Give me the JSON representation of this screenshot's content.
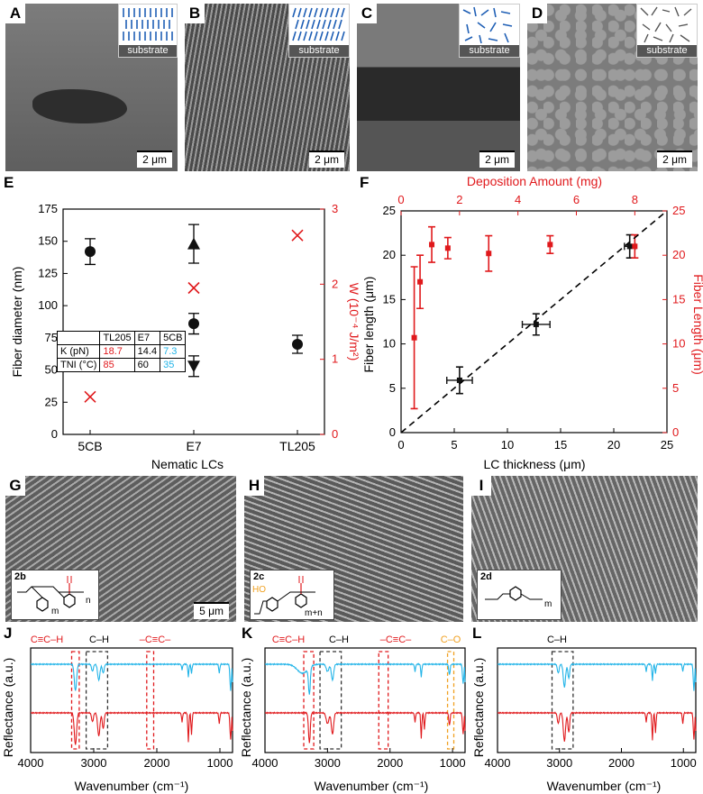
{
  "sem_top": [
    {
      "letter": "A",
      "inset_label": "substrate",
      "scale": "2 μm"
    },
    {
      "letter": "B",
      "inset_label": "substrate",
      "scale": "2 μm"
    },
    {
      "letter": "C",
      "inset_label": "substrate",
      "scale": "2 μm"
    },
    {
      "letter": "D",
      "inset_label": "substrate",
      "scale": "2 μm"
    }
  ],
  "sem_bottom": [
    {
      "letter": "G",
      "molecule": "2b",
      "scale": "5 μm"
    },
    {
      "letter": "H",
      "molecule": "2c",
      "scale": ""
    },
    {
      "letter": "I",
      "molecule": "2d",
      "scale": ""
    }
  ],
  "molecule_labels": {
    "2b_sub": "n",
    "2b_m": "m",
    "2c_sub": "m+n",
    "2c_ho": "HO",
    "2d_sub": "m"
  },
  "panel_letters": {
    "E": "E",
    "F": "F",
    "J": "J",
    "K": "K",
    "L": "L"
  },
  "table_E": {
    "header": [
      "",
      "TL205",
      "E7",
      "5CB"
    ],
    "rows": [
      [
        "K (pN)",
        "18.7",
        "14.4",
        "7.3"
      ],
      [
        "TNI (°C)",
        "85",
        "60",
        "35"
      ]
    ]
  },
  "ir_bands": {
    "J": [
      "C≡C–H",
      "C–H",
      "–C≡C–"
    ],
    "K": [
      "C≡C–H",
      "C–H",
      "–C≡C–",
      "C–O"
    ],
    "L": [
      "C–H"
    ]
  },
  "colors": {
    "red": "#e0191c",
    "cyan": "#22b4e8",
    "orange": "#f0a020",
    "blue": "#1f5fb5"
  },
  "chart_data": [
    {
      "panel": "E",
      "type": "scatter",
      "xlabel": "Nematic LCs",
      "ylabel": "Fiber diameter (nm)",
      "ylabel_right": "W (10⁻⁴ J/m²)",
      "categories": [
        "5CB",
        "E7",
        "TL205"
      ],
      "ylim": [
        0,
        175
      ],
      "yticks": [
        0,
        25,
        50,
        75,
        100,
        125,
        150,
        175
      ],
      "ylim_right": [
        0,
        3
      ],
      "yticks_right": [
        0,
        1,
        2,
        3
      ],
      "series": [
        {
          "marker": "circle",
          "points": [
            {
              "x": "5CB",
              "y": 142,
              "err": 10
            },
            {
              "x": "E7",
              "y": 86,
              "err": 8
            },
            {
              "x": "TL205",
              "y": 70,
              "err": 7
            }
          ]
        },
        {
          "marker": "triangle-up",
          "points": [
            {
              "x": "E7",
              "y": 148,
              "err": 15
            }
          ]
        },
        {
          "marker": "triangle-down",
          "points": [
            {
              "x": "E7",
              "y": 53,
              "err": 8
            }
          ]
        },
        {
          "marker": "cross",
          "axis": "right",
          "points": [
            {
              "x": "5CB",
              "y": 0.5
            },
            {
              "x": "E7",
              "y": 1.95
            },
            {
              "x": "TL205",
              "y": 2.65
            }
          ]
        }
      ]
    },
    {
      "panel": "F",
      "type": "scatter",
      "xlabel": "LC thickness (μm)",
      "ylabel": "Fiber length (μm)",
      "xlabel_top": "Deposition Amount (mg)",
      "ylabel_right": "Fiber Length (μm)",
      "xlim": [
        0,
        25
      ],
      "xticks": [
        0,
        5,
        10,
        15,
        20,
        25
      ],
      "ylim": [
        0,
        25
      ],
      "yticks": [
        0,
        5,
        10,
        15,
        20,
        25
      ],
      "xlim_top": [
        0,
        9.1
      ],
      "xticks_top": [
        0,
        2,
        4,
        6,
        8
      ],
      "yticks_right": [
        0,
        5,
        10,
        15,
        20,
        25
      ],
      "series": [
        {
          "color": "black",
          "points": [
            {
              "x": 5.5,
              "y": 5.9,
              "xerr": 1.2,
              "yerr": 1.5
            },
            {
              "x": 12.7,
              "y": 12.2,
              "xerr": 1.3,
              "yerr": 1.2
            },
            {
              "x": 21.5,
              "y": 21.0,
              "xerr": 0.5,
              "yerr": 1.3
            }
          ]
        },
        {
          "color": "red",
          "axis": "top-right",
          "points": [
            {
              "x": 0.45,
              "y": 10.7,
              "yerr": 8
            },
            {
              "x": 0.65,
              "y": 17.0,
              "yerr": 3
            },
            {
              "x": 1.05,
              "y": 21.2,
              "yerr": 2
            },
            {
              "x": 1.6,
              "y": 20.8,
              "yerr": 1.2
            },
            {
              "x": 3.0,
              "y": 20.2,
              "yerr": 2
            },
            {
              "x": 5.1,
              "y": 21.2,
              "yerr": 1
            },
            {
              "x": 8.0,
              "y": 21.0,
              "yerr": 1.3
            }
          ]
        },
        {
          "style": "dashed",
          "points": [
            {
              "x": 0,
              "y": 0
            },
            {
              "x": 25,
              "y": 25
            }
          ]
        }
      ]
    },
    {
      "panel": "J",
      "type": "line",
      "xlabel": "Wavenumber (cm⁻¹)",
      "ylabel": "Reflectance (a.u.)",
      "xlim": [
        4000,
        800
      ],
      "xticks": [
        4000,
        3000,
        2000,
        1000
      ]
    },
    {
      "panel": "K",
      "type": "line",
      "xlabel": "Wavenumber (cm⁻¹)",
      "ylabel": "Reflectance (a.u.)",
      "xlim": [
        4000,
        800
      ],
      "xticks": [
        4000,
        3000,
        2000,
        1000
      ]
    },
    {
      "panel": "L",
      "type": "line",
      "xlabel": "Wavenumber (cm⁻¹)",
      "ylabel": "Reflectance (a.u.)",
      "xlim": [
        4000,
        800
      ],
      "xticks": [
        4000,
        3000,
        2000,
        1000
      ]
    }
  ]
}
